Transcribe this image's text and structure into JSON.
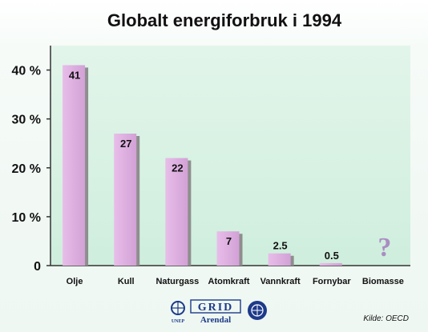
{
  "chart_data": {
    "type": "bar",
    "title": "Globalt energiforbruk i 1994",
    "categories": [
      "Olje",
      "Kull",
      "Naturgass",
      "Atomkraft",
      "Vannkraft",
      "Fornybar",
      "Biomasse"
    ],
    "values": [
      41,
      27,
      22,
      7,
      2.5,
      0.5,
      null
    ],
    "value_labels": [
      "41",
      "27",
      "22",
      "7",
      "2.5",
      "0.5",
      "?"
    ],
    "yticks": [
      0,
      10,
      20,
      30,
      40
    ],
    "ytick_labels": [
      "0",
      "10 %",
      "20 %",
      "30 %",
      "40 %"
    ],
    "ylim": [
      0,
      45
    ],
    "grid": false,
    "legend": "none",
    "xlabel": "",
    "ylabel": "",
    "colors": {
      "bar": "#dcaede",
      "bar_shadow": "#8e8e8e",
      "plot_background": "#d6f0e0",
      "axis": "#333333",
      "unknown_marker": "#a98ec2"
    }
  },
  "footer": {
    "source": "Kilde: OECD",
    "logo_text": "GRID",
    "logo_subtext": "Arendal",
    "logo_small_left": "UNEP",
    "icons": [
      "unep-logo-icon",
      "grid-arendal-logo",
      "un-emblem-icon"
    ]
  }
}
